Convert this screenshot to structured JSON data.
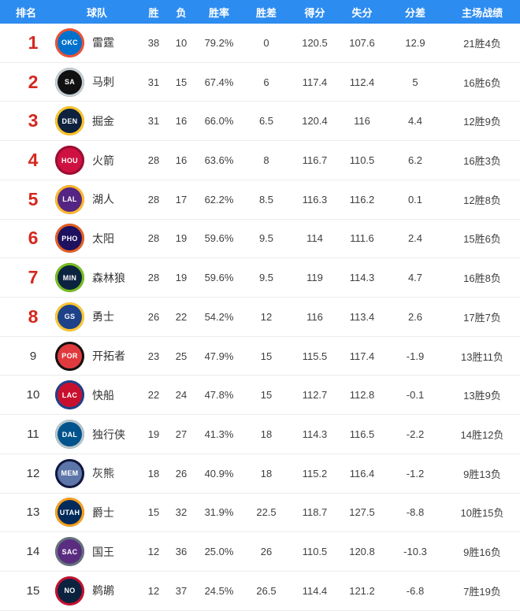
{
  "colors": {
    "header_bg": "#2d8cf0",
    "header_text": "#ffffff",
    "playoff_rank": "#d4281e",
    "normal_rank": "#333333",
    "row_border": "#ececec"
  },
  "chart_data": {
    "type": "table",
    "columns": [
      "排名",
      "球队",
      "胜",
      "负",
      "胜率",
      "胜差",
      "得分",
      "失分",
      "分差",
      "主场战绩"
    ],
    "rows": [
      {
        "rank": "1",
        "team": "雷霆",
        "abbr": "OKC",
        "playoff_zone": true,
        "logo_bg": "#0072ce",
        "logo_ring": "#f05133",
        "wins": "38",
        "losses": "10",
        "win_pct": "79.2%",
        "games_behind": "0",
        "points_for": "120.5",
        "points_against": "107.6",
        "point_diff": "12.9",
        "home_record": "21胜4负"
      },
      {
        "rank": "2",
        "team": "马刺",
        "abbr": "SA",
        "playoff_zone": true,
        "logo_bg": "#111111",
        "logo_ring": "#c4ced4",
        "wins": "31",
        "losses": "15",
        "win_pct": "67.4%",
        "games_behind": "6",
        "points_for": "117.4",
        "points_against": "112.4",
        "point_diff": "5",
        "home_record": "16胜6负"
      },
      {
        "rank": "3",
        "team": "掘金",
        "abbr": "DEN",
        "playoff_zone": true,
        "logo_bg": "#0e2240",
        "logo_ring": "#fec524",
        "wins": "31",
        "losses": "16",
        "win_pct": "66.0%",
        "games_behind": "6.5",
        "points_for": "120.4",
        "points_against": "116",
        "point_diff": "4.4",
        "home_record": "12胜9负"
      },
      {
        "rank": "4",
        "team": "火箭",
        "abbr": "HOU",
        "playoff_zone": true,
        "logo_bg": "#ce1141",
        "logo_ring": "#9b0d31",
        "wins": "28",
        "losses": "16",
        "win_pct": "63.6%",
        "games_behind": "8",
        "points_for": "116.7",
        "points_against": "110.5",
        "point_diff": "6.2",
        "home_record": "16胜3负"
      },
      {
        "rank": "5",
        "team": "湖人",
        "abbr": "LAL",
        "playoff_zone": true,
        "logo_bg": "#552583",
        "logo_ring": "#fdb927",
        "wins": "28",
        "losses": "17",
        "win_pct": "62.2%",
        "games_behind": "8.5",
        "points_for": "116.3",
        "points_against": "116.2",
        "point_diff": "0.1",
        "home_record": "12胜8负"
      },
      {
        "rank": "6",
        "team": "太阳",
        "abbr": "PHO",
        "playoff_zone": true,
        "logo_bg": "#1d1160",
        "logo_ring": "#e56020",
        "wins": "28",
        "losses": "19",
        "win_pct": "59.6%",
        "games_behind": "9.5",
        "points_for": "114",
        "points_against": "111.6",
        "point_diff": "2.4",
        "home_record": "15胜6负"
      },
      {
        "rank": "7",
        "team": "森林狼",
        "abbr": "MIN",
        "playoff_zone": true,
        "logo_bg": "#0c2340",
        "logo_ring": "#78be20",
        "wins": "28",
        "losses": "19",
        "win_pct": "59.6%",
        "games_behind": "9.5",
        "points_for": "119",
        "points_against": "114.3",
        "point_diff": "4.7",
        "home_record": "16胜8负"
      },
      {
        "rank": "8",
        "team": "勇士",
        "abbr": "GS",
        "playoff_zone": true,
        "logo_bg": "#1d428a",
        "logo_ring": "#ffc72c",
        "wins": "26",
        "losses": "22",
        "win_pct": "54.2%",
        "games_behind": "12",
        "points_for": "116",
        "points_against": "113.4",
        "point_diff": "2.6",
        "home_record": "17胜7负"
      },
      {
        "rank": "9",
        "team": "开拓者",
        "abbr": "POR",
        "playoff_zone": false,
        "logo_bg": "#e03a3e",
        "logo_ring": "#111111",
        "wins": "23",
        "losses": "25",
        "win_pct": "47.9%",
        "games_behind": "15",
        "points_for": "115.5",
        "points_against": "117.4",
        "point_diff": "-1.9",
        "home_record": "13胜11负"
      },
      {
        "rank": "10",
        "team": "快船",
        "abbr": "LAC",
        "playoff_zone": false,
        "logo_bg": "#c8102e",
        "logo_ring": "#1d428a",
        "wins": "22",
        "losses": "24",
        "win_pct": "47.8%",
        "games_behind": "15",
        "points_for": "112.7",
        "points_against": "112.8",
        "point_diff": "-0.1",
        "home_record": "13胜9负"
      },
      {
        "rank": "11",
        "team": "独行侠",
        "abbr": "DAL",
        "playoff_zone": false,
        "logo_bg": "#00538c",
        "logo_ring": "#b8c4ca",
        "wins": "19",
        "losses": "27",
        "win_pct": "41.3%",
        "games_behind": "18",
        "points_for": "114.3",
        "points_against": "116.5",
        "point_diff": "-2.2",
        "home_record": "14胜12负"
      },
      {
        "rank": "12",
        "team": "灰熊",
        "abbr": "MEM",
        "playoff_zone": false,
        "logo_bg": "#5d76a9",
        "logo_ring": "#12173f",
        "wins": "18",
        "losses": "26",
        "win_pct": "40.9%",
        "games_behind": "18",
        "points_for": "115.2",
        "points_against": "116.4",
        "point_diff": "-1.2",
        "home_record": "9胜13负"
      },
      {
        "rank": "13",
        "team": "爵士",
        "abbr": "UTAH",
        "playoff_zone": false,
        "logo_bg": "#002b5c",
        "logo_ring": "#f9a01b",
        "wins": "15",
        "losses": "32",
        "win_pct": "31.9%",
        "games_behind": "22.5",
        "points_for": "118.7",
        "points_against": "127.5",
        "point_diff": "-8.8",
        "home_record": "10胜15负"
      },
      {
        "rank": "14",
        "team": "国王",
        "abbr": "SAC",
        "playoff_zone": false,
        "logo_bg": "#5a2d81",
        "logo_ring": "#63727a",
        "wins": "12",
        "losses": "36",
        "win_pct": "25.0%",
        "games_behind": "26",
        "points_for": "110.5",
        "points_against": "120.8",
        "point_diff": "-10.3",
        "home_record": "9胜16负"
      },
      {
        "rank": "15",
        "team": "鹈鹕",
        "abbr": "NO",
        "playoff_zone": false,
        "logo_bg": "#0c2340",
        "logo_ring": "#c8102e",
        "wins": "12",
        "losses": "37",
        "win_pct": "24.5%",
        "games_behind": "26.5",
        "points_for": "114.4",
        "points_against": "121.2",
        "point_diff": "-6.8",
        "home_record": "7胜19负"
      }
    ]
  }
}
